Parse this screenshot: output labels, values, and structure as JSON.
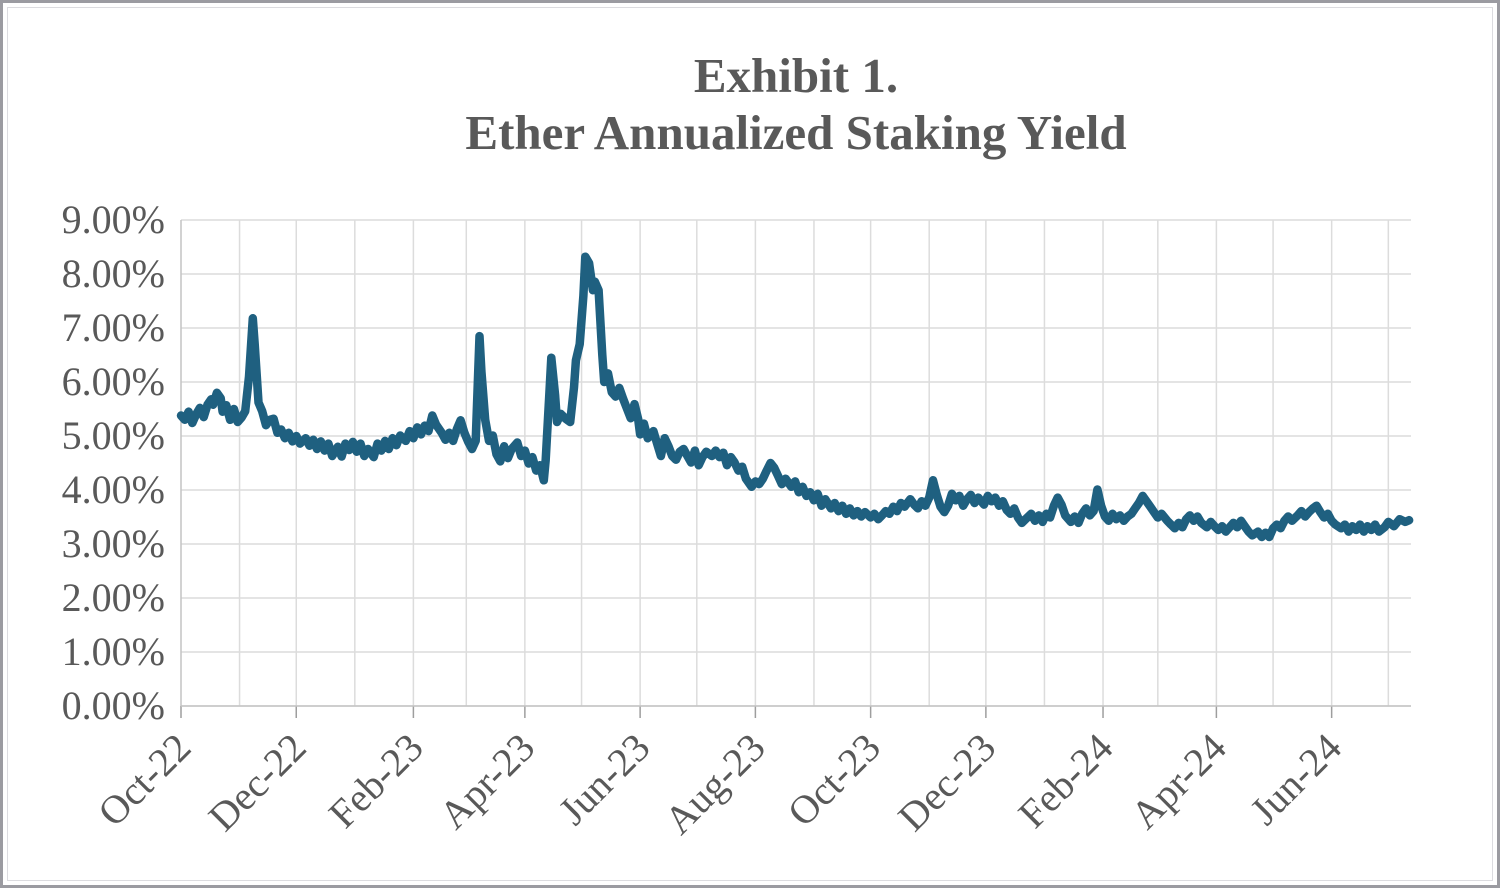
{
  "chart": {
    "title_line1": "Exhibit 1.",
    "title_line2": "Ether Annualized Staking Yield"
  },
  "chart_data": {
    "type": "line",
    "title": "Exhibit 1. Ether Annualized Staking Yield",
    "series_name": "Ether annualized staking yield",
    "xlabel": "",
    "ylabel": "",
    "grid": true,
    "legend": "none",
    "ylim": [
      0,
      9
    ],
    "y_tick_labels": [
      "0.00%",
      "1.00%",
      "2.00%",
      "3.00%",
      "4.00%",
      "5.00%",
      "6.00%",
      "7.00%",
      "8.00%",
      "9.00%"
    ],
    "x_tick_labels": [
      "Oct-22",
      "Dec-22",
      "Feb-23",
      "Apr-23",
      "Jun-23",
      "Aug-23",
      "Oct-23",
      "Dec-23",
      "Feb-24",
      "Apr-24",
      "Jun-24"
    ],
    "x_range": [
      "2022-10-01",
      "2024-07-13"
    ],
    "colors": {
      "line": "#1f6080",
      "label": "#595959",
      "gridline": "#dcdcdc",
      "axis": "#c4c4c4",
      "tick": "#9e9e9e"
    },
    "points": [
      [
        "2022-10-01",
        5.38
      ],
      [
        "2022-10-03",
        5.3
      ],
      [
        "2022-10-05",
        5.45
      ],
      [
        "2022-10-07",
        5.24
      ],
      [
        "2022-10-09",
        5.4
      ],
      [
        "2022-10-11",
        5.52
      ],
      [
        "2022-10-13",
        5.35
      ],
      [
        "2022-10-15",
        5.58
      ],
      [
        "2022-10-17",
        5.68
      ],
      [
        "2022-10-18",
        5.58
      ],
      [
        "2022-10-20",
        5.8
      ],
      [
        "2022-10-22",
        5.7
      ],
      [
        "2022-10-23",
        5.45
      ],
      [
        "2022-10-25",
        5.57
      ],
      [
        "2022-10-27",
        5.3
      ],
      [
        "2022-10-29",
        5.5
      ],
      [
        "2022-10-31",
        5.26
      ],
      [
        "2022-11-02",
        5.34
      ],
      [
        "2022-11-04",
        5.46
      ],
      [
        "2022-11-06",
        6.1
      ],
      [
        "2022-11-08",
        7.18
      ],
      [
        "2022-11-09",
        6.7
      ],
      [
        "2022-11-11",
        5.62
      ],
      [
        "2022-11-13",
        5.46
      ],
      [
        "2022-11-15",
        5.2
      ],
      [
        "2022-11-17",
        5.3
      ],
      [
        "2022-11-19",
        5.32
      ],
      [
        "2022-11-21",
        5.06
      ],
      [
        "2022-11-23",
        5.12
      ],
      [
        "2022-11-25",
        4.96
      ],
      [
        "2022-11-27",
        5.06
      ],
      [
        "2022-11-29",
        4.9
      ],
      [
        "2022-12-01",
        5.0
      ],
      [
        "2022-12-03",
        4.86
      ],
      [
        "2022-12-06",
        4.96
      ],
      [
        "2022-12-08",
        4.82
      ],
      [
        "2022-12-10",
        4.93
      ],
      [
        "2022-12-12",
        4.76
      ],
      [
        "2022-12-14",
        4.9
      ],
      [
        "2022-12-16",
        4.73
      ],
      [
        "2022-12-18",
        4.86
      ],
      [
        "2022-12-20",
        4.63
      ],
      [
        "2022-12-23",
        4.8
      ],
      [
        "2022-12-25",
        4.62
      ],
      [
        "2022-12-27",
        4.86
      ],
      [
        "2022-12-29",
        4.74
      ],
      [
        "2022-12-31",
        4.89
      ],
      [
        "2023-01-02",
        4.71
      ],
      [
        "2023-01-04",
        4.86
      ],
      [
        "2023-01-06",
        4.63
      ],
      [
        "2023-01-08",
        4.76
      ],
      [
        "2023-01-11",
        4.61
      ],
      [
        "2023-01-13",
        4.86
      ],
      [
        "2023-01-15",
        4.73
      ],
      [
        "2023-01-17",
        4.91
      ],
      [
        "2023-01-19",
        4.76
      ],
      [
        "2023-01-21",
        4.96
      ],
      [
        "2023-01-23",
        4.83
      ],
      [
        "2023-01-25",
        5.01
      ],
      [
        "2023-01-28",
        4.91
      ],
      [
        "2023-01-30",
        5.09
      ],
      [
        "2023-02-01",
        4.96
      ],
      [
        "2023-02-03",
        5.16
      ],
      [
        "2023-02-05",
        5.03
      ],
      [
        "2023-02-07",
        5.19
      ],
      [
        "2023-02-09",
        5.09
      ],
      [
        "2023-02-11",
        5.38
      ],
      [
        "2023-02-13",
        5.21
      ],
      [
        "2023-02-16",
        5.06
      ],
      [
        "2023-02-18",
        4.93
      ],
      [
        "2023-02-20",
        5.06
      ],
      [
        "2023-02-22",
        4.91
      ],
      [
        "2023-02-24",
        5.13
      ],
      [
        "2023-02-26",
        5.29
      ],
      [
        "2023-02-28",
        5.06
      ],
      [
        "2023-03-02",
        4.89
      ],
      [
        "2023-03-04",
        4.76
      ],
      [
        "2023-03-06",
        4.91
      ],
      [
        "2023-03-08",
        6.85
      ],
      [
        "2023-03-09",
        6.2
      ],
      [
        "2023-03-11",
        5.3
      ],
      [
        "2023-03-13",
        4.91
      ],
      [
        "2023-03-15",
        5.01
      ],
      [
        "2023-03-17",
        4.66
      ],
      [
        "2023-03-19",
        4.53
      ],
      [
        "2023-03-21",
        4.81
      ],
      [
        "2023-03-23",
        4.59
      ],
      [
        "2023-03-25",
        4.76
      ],
      [
        "2023-03-28",
        4.88
      ],
      [
        "2023-03-30",
        4.63
      ],
      [
        "2023-04-01",
        4.73
      ],
      [
        "2023-04-03",
        4.49
      ],
      [
        "2023-04-05",
        4.61
      ],
      [
        "2023-04-07",
        4.36
      ],
      [
        "2023-04-09",
        4.46
      ],
      [
        "2023-04-11",
        4.18
      ],
      [
        "2023-04-12",
        4.56
      ],
      [
        "2023-04-14",
        5.8
      ],
      [
        "2023-04-15",
        6.45
      ],
      [
        "2023-04-17",
        5.76
      ],
      [
        "2023-04-18",
        5.26
      ],
      [
        "2023-04-20",
        5.41
      ],
      [
        "2023-04-23",
        5.31
      ],
      [
        "2023-04-25",
        5.26
      ],
      [
        "2023-04-27",
        5.9
      ],
      [
        "2023-04-28",
        6.4
      ],
      [
        "2023-04-30",
        6.7
      ],
      [
        "2023-05-02",
        7.6
      ],
      [
        "2023-05-03",
        8.32
      ],
      [
        "2023-05-05",
        8.2
      ],
      [
        "2023-05-07",
        7.7
      ],
      [
        "2023-05-08",
        7.86
      ],
      [
        "2023-05-10",
        7.7
      ],
      [
        "2023-05-12",
        6.5
      ],
      [
        "2023-05-13",
        6.0
      ],
      [
        "2023-05-15",
        6.16
      ],
      [
        "2023-05-17",
        5.81
      ],
      [
        "2023-05-19",
        5.73
      ],
      [
        "2023-05-21",
        5.89
      ],
      [
        "2023-05-23",
        5.69
      ],
      [
        "2023-05-25",
        5.51
      ],
      [
        "2023-05-27",
        5.33
      ],
      [
        "2023-05-29",
        5.59
      ],
      [
        "2023-05-31",
        5.31
      ],
      [
        "2023-06-01",
        5.03
      ],
      [
        "2023-06-03",
        5.23
      ],
      [
        "2023-06-05",
        4.96
      ],
      [
        "2023-06-08",
        5.09
      ],
      [
        "2023-06-10",
        4.86
      ],
      [
        "2023-06-12",
        4.63
      ],
      [
        "2023-06-14",
        4.96
      ],
      [
        "2023-06-16",
        4.81
      ],
      [
        "2023-06-18",
        4.63
      ],
      [
        "2023-06-20",
        4.56
      ],
      [
        "2023-06-22",
        4.71
      ],
      [
        "2023-06-24",
        4.76
      ],
      [
        "2023-06-26",
        4.63
      ],
      [
        "2023-06-28",
        4.51
      ],
      [
        "2023-06-30",
        4.73
      ],
      [
        "2023-07-02",
        4.46
      ],
      [
        "2023-07-04",
        4.61
      ],
      [
        "2023-07-06",
        4.71
      ],
      [
        "2023-07-09",
        4.63
      ],
      [
        "2023-07-11",
        4.73
      ],
      [
        "2023-07-13",
        4.61
      ],
      [
        "2023-07-15",
        4.69
      ],
      [
        "2023-07-17",
        4.46
      ],
      [
        "2023-07-19",
        4.61
      ],
      [
        "2023-07-21",
        4.51
      ],
      [
        "2023-07-23",
        4.36
      ],
      [
        "2023-07-25",
        4.43
      ],
      [
        "2023-07-27",
        4.21
      ],
      [
        "2023-07-30",
        4.06
      ],
      [
        "2023-08-01",
        4.16
      ],
      [
        "2023-08-03",
        4.11
      ],
      [
        "2023-08-05",
        4.21
      ],
      [
        "2023-08-07",
        4.36
      ],
      [
        "2023-08-09",
        4.5
      ],
      [
        "2023-08-11",
        4.41
      ],
      [
        "2023-08-13",
        4.26
      ],
      [
        "2023-08-15",
        4.11
      ],
      [
        "2023-08-17",
        4.21
      ],
      [
        "2023-08-20",
        4.06
      ],
      [
        "2023-08-22",
        4.16
      ],
      [
        "2023-08-24",
        3.96
      ],
      [
        "2023-08-26",
        4.06
      ],
      [
        "2023-08-28",
        3.89
      ],
      [
        "2023-08-30",
        3.96
      ],
      [
        "2023-09-01",
        3.81
      ],
      [
        "2023-09-03",
        3.93
      ],
      [
        "2023-09-05",
        3.71
      ],
      [
        "2023-09-07",
        3.83
      ],
      [
        "2023-09-10",
        3.66
      ],
      [
        "2023-09-12",
        3.76
      ],
      [
        "2023-09-14",
        3.61
      ],
      [
        "2023-09-16",
        3.71
      ],
      [
        "2023-09-18",
        3.56
      ],
      [
        "2023-09-20",
        3.66
      ],
      [
        "2023-09-22",
        3.53
      ],
      [
        "2023-09-24",
        3.61
      ],
      [
        "2023-09-26",
        3.51
      ],
      [
        "2023-09-28",
        3.59
      ],
      [
        "2023-10-01",
        3.49
      ],
      [
        "2023-10-03",
        3.56
      ],
      [
        "2023-10-05",
        3.46
      ],
      [
        "2023-10-07",
        3.53
      ],
      [
        "2023-10-09",
        3.61
      ],
      [
        "2023-10-11",
        3.56
      ],
      [
        "2023-10-13",
        3.69
      ],
      [
        "2023-10-15",
        3.61
      ],
      [
        "2023-10-17",
        3.76
      ],
      [
        "2023-10-19",
        3.69
      ],
      [
        "2023-10-22",
        3.83
      ],
      [
        "2023-10-24",
        3.73
      ],
      [
        "2023-10-26",
        3.66
      ],
      [
        "2023-10-28",
        3.79
      ],
      [
        "2023-10-30",
        3.71
      ],
      [
        "2023-11-01",
        3.86
      ],
      [
        "2023-11-03",
        4.18
      ],
      [
        "2023-11-05",
        3.91
      ],
      [
        "2023-11-07",
        3.69
      ],
      [
        "2023-11-09",
        3.59
      ],
      [
        "2023-11-11",
        3.71
      ],
      [
        "2023-11-13",
        3.93
      ],
      [
        "2023-11-15",
        3.81
      ],
      [
        "2023-11-17",
        3.89
      ],
      [
        "2023-11-19",
        3.71
      ],
      [
        "2023-11-21",
        3.83
      ],
      [
        "2023-11-23",
        3.91
      ],
      [
        "2023-11-25",
        3.76
      ],
      [
        "2023-11-27",
        3.86
      ],
      [
        "2023-11-30",
        3.73
      ],
      [
        "2023-12-02",
        3.89
      ],
      [
        "2023-12-04",
        3.79
      ],
      [
        "2023-12-06",
        3.86
      ],
      [
        "2023-12-08",
        3.71
      ],
      [
        "2023-12-10",
        3.79
      ],
      [
        "2023-12-12",
        3.63
      ],
      [
        "2023-12-14",
        3.56
      ],
      [
        "2023-12-16",
        3.66
      ],
      [
        "2023-12-18",
        3.49
      ],
      [
        "2023-12-20",
        3.39
      ],
      [
        "2023-12-22",
        3.46
      ],
      [
        "2023-12-25",
        3.56
      ],
      [
        "2023-12-27",
        3.43
      ],
      [
        "2023-12-29",
        3.53
      ],
      [
        "2023-12-31",
        3.41
      ],
      [
        "2024-01-02",
        3.56
      ],
      [
        "2024-01-04",
        3.49
      ],
      [
        "2024-01-06",
        3.71
      ],
      [
        "2024-01-08",
        3.86
      ],
      [
        "2024-01-10",
        3.73
      ],
      [
        "2024-01-12",
        3.53
      ],
      [
        "2024-01-15",
        3.41
      ],
      [
        "2024-01-17",
        3.51
      ],
      [
        "2024-01-19",
        3.39
      ],
      [
        "2024-01-21",
        3.56
      ],
      [
        "2024-01-23",
        3.66
      ],
      [
        "2024-01-25",
        3.53
      ],
      [
        "2024-01-27",
        3.61
      ],
      [
        "2024-01-29",
        4.01
      ],
      [
        "2024-01-31",
        3.71
      ],
      [
        "2024-02-02",
        3.51
      ],
      [
        "2024-02-04",
        3.43
      ],
      [
        "2024-02-06",
        3.56
      ],
      [
        "2024-02-08",
        3.46
      ],
      [
        "2024-02-10",
        3.53
      ],
      [
        "2024-02-12",
        3.43
      ],
      [
        "2024-02-14",
        3.51
      ],
      [
        "2024-02-16",
        3.56
      ],
      [
        "2024-02-18",
        3.66
      ],
      [
        "2024-02-20",
        3.76
      ],
      [
        "2024-02-22",
        3.89
      ],
      [
        "2024-02-24",
        3.79
      ],
      [
        "2024-02-26",
        3.69
      ],
      [
        "2024-02-28",
        3.59
      ],
      [
        "2024-03-01",
        3.49
      ],
      [
        "2024-03-03",
        3.56
      ],
      [
        "2024-03-06",
        3.43
      ],
      [
        "2024-03-08",
        3.36
      ],
      [
        "2024-03-10",
        3.29
      ],
      [
        "2024-03-12",
        3.39
      ],
      [
        "2024-03-14",
        3.31
      ],
      [
        "2024-03-16",
        3.46
      ],
      [
        "2024-03-18",
        3.53
      ],
      [
        "2024-03-20",
        3.43
      ],
      [
        "2024-03-22",
        3.51
      ],
      [
        "2024-03-24",
        3.39
      ],
      [
        "2024-03-27",
        3.31
      ],
      [
        "2024-03-29",
        3.41
      ],
      [
        "2024-03-31",
        3.33
      ],
      [
        "2024-04-02",
        3.26
      ],
      [
        "2024-04-04",
        3.33
      ],
      [
        "2024-04-06",
        3.23
      ],
      [
        "2024-04-08",
        3.31
      ],
      [
        "2024-04-10",
        3.39
      ],
      [
        "2024-04-12",
        3.31
      ],
      [
        "2024-04-14",
        3.43
      ],
      [
        "2024-04-16",
        3.33
      ],
      [
        "2024-04-18",
        3.23
      ],
      [
        "2024-04-20",
        3.16
      ],
      [
        "2024-04-23",
        3.23
      ],
      [
        "2024-04-25",
        3.13
      ],
      [
        "2024-04-27",
        3.21
      ],
      [
        "2024-04-29",
        3.13
      ],
      [
        "2024-05-01",
        3.29
      ],
      [
        "2024-05-03",
        3.36
      ],
      [
        "2024-05-05",
        3.29
      ],
      [
        "2024-05-07",
        3.43
      ],
      [
        "2024-05-09",
        3.51
      ],
      [
        "2024-05-11",
        3.43
      ],
      [
        "2024-05-14",
        3.53
      ],
      [
        "2024-05-16",
        3.61
      ],
      [
        "2024-05-18",
        3.51
      ],
      [
        "2024-05-20",
        3.59
      ],
      [
        "2024-05-22",
        3.66
      ],
      [
        "2024-05-24",
        3.71
      ],
      [
        "2024-05-26",
        3.59
      ],
      [
        "2024-05-28",
        3.49
      ],
      [
        "2024-05-30",
        3.56
      ],
      [
        "2024-06-01",
        3.43
      ],
      [
        "2024-06-03",
        3.36
      ],
      [
        "2024-06-06",
        3.29
      ],
      [
        "2024-06-08",
        3.36
      ],
      [
        "2024-06-10",
        3.23
      ],
      [
        "2024-06-12",
        3.33
      ],
      [
        "2024-06-14",
        3.26
      ],
      [
        "2024-06-16",
        3.36
      ],
      [
        "2024-06-18",
        3.23
      ],
      [
        "2024-06-20",
        3.33
      ],
      [
        "2024-06-22",
        3.26
      ],
      [
        "2024-06-24",
        3.36
      ],
      [
        "2024-06-26",
        3.23
      ],
      [
        "2024-06-29",
        3.31
      ],
      [
        "2024-07-01",
        3.41
      ],
      [
        "2024-07-04",
        3.33
      ],
      [
        "2024-07-07",
        3.46
      ],
      [
        "2024-07-10",
        3.41
      ],
      [
        "2024-07-12",
        3.44
      ]
    ]
  }
}
